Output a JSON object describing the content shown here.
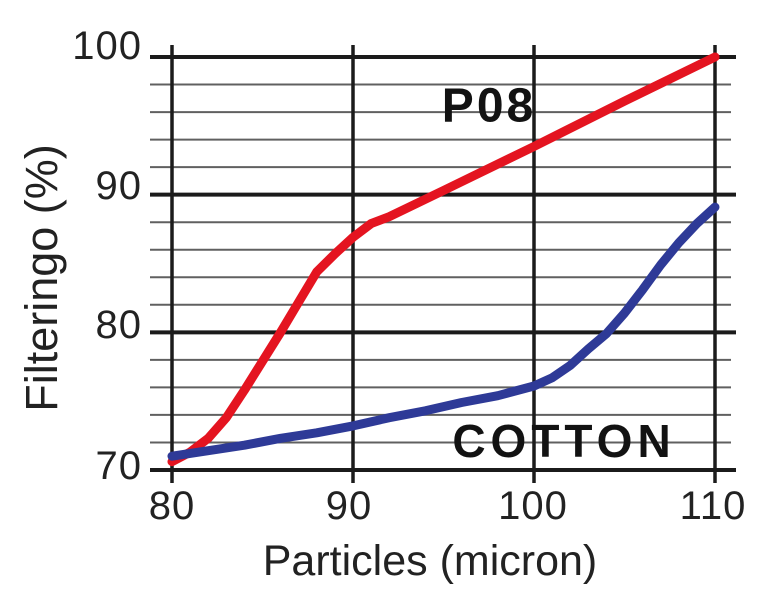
{
  "chart_data": {
    "type": "line",
    "title": "",
    "xlabel": "Particles (micron)",
    "ylabel": "Filteringo (%)",
    "xlim": [
      80,
      110
    ],
    "ylim": [
      70,
      100
    ],
    "xticks": [
      80,
      90,
      100,
      110
    ],
    "yticks": [
      70,
      80,
      90,
      100
    ],
    "xtick_labels": [
      "80",
      "90",
      "100",
      "110"
    ],
    "ytick_labels": [
      "70",
      "80",
      "90",
      "100"
    ],
    "y_minor_step": 2,
    "grid": true,
    "axis_color": "#1b1b1b",
    "minor_grid_color": "#606060",
    "background_color": "#ffffff",
    "legend_position": "inline-annotations",
    "series": [
      {
        "name": "P08",
        "color": "#e41420",
        "line_width": 9,
        "points": [
          [
            80,
            70.6
          ],
          [
            81,
            71.3
          ],
          [
            82,
            72.3
          ],
          [
            83,
            73.8
          ],
          [
            84,
            75.8
          ],
          [
            85,
            77.9
          ],
          [
            86,
            80.0
          ],
          [
            87,
            82.2
          ],
          [
            88,
            84.4
          ],
          [
            89,
            85.7
          ],
          [
            90,
            86.9
          ],
          [
            91,
            87.9
          ],
          [
            92,
            88.4
          ],
          [
            95,
            90.3
          ],
          [
            100,
            93.5
          ],
          [
            105,
            96.8
          ],
          [
            110,
            100.0
          ]
        ]
      },
      {
        "name": "COTTON",
        "color": "#2e3a97",
        "line_width": 9,
        "points": [
          [
            80,
            71.0
          ],
          [
            82,
            71.4
          ],
          [
            84,
            71.8
          ],
          [
            86,
            72.3
          ],
          [
            88,
            72.7
          ],
          [
            90,
            73.2
          ],
          [
            92,
            73.8
          ],
          [
            94,
            74.3
          ],
          [
            96,
            74.9
          ],
          [
            98,
            75.4
          ],
          [
            100,
            76.1
          ],
          [
            101,
            76.7
          ],
          [
            102,
            77.6
          ],
          [
            103,
            78.8
          ],
          [
            104,
            79.9
          ],
          [
            105,
            81.4
          ],
          [
            106,
            83.1
          ],
          [
            107,
            84.9
          ],
          [
            108,
            86.5
          ],
          [
            109,
            87.9
          ],
          [
            110,
            89.1
          ]
        ]
      }
    ]
  }
}
